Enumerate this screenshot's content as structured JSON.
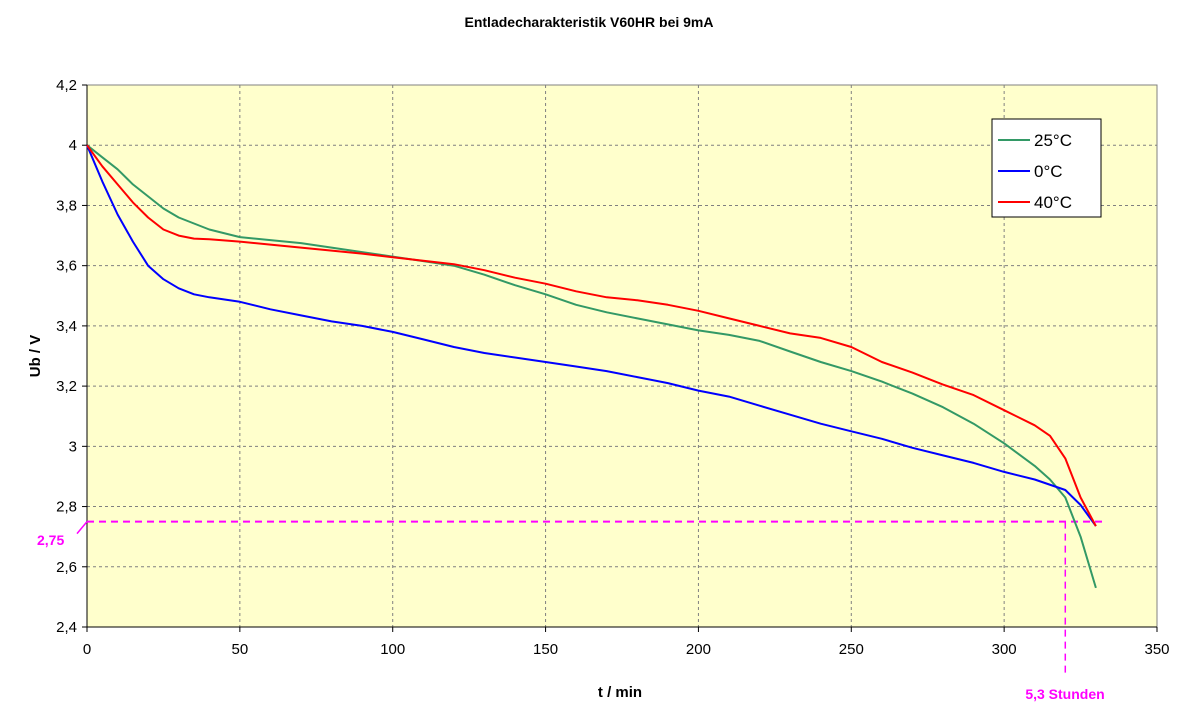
{
  "chart_data": {
    "type": "line",
    "title": "Entladecharakteristik V60HR bei 9mA",
    "xlabel": "t / min",
    "ylabel": "Ub / V",
    "xlim": [
      0,
      350
    ],
    "ylim": [
      2.4,
      4.2
    ],
    "x_ticks": [
      "0",
      "50",
      "100",
      "150",
      "200",
      "250",
      "300",
      "350"
    ],
    "y_ticks": [
      "2,4",
      "2,6",
      "2,8",
      "3",
      "3,2",
      "3,4",
      "3,6",
      "3,8",
      "4",
      "4,2"
    ],
    "grid": true,
    "legend_position": "top-right",
    "plot_background": "#ffffcc",
    "series": [
      {
        "name": "25°C",
        "color": "#339966",
        "points": [
          [
            0,
            4.0
          ],
          [
            5,
            3.96
          ],
          [
            10,
            3.92
          ],
          [
            15,
            3.87
          ],
          [
            20,
            3.83
          ],
          [
            25,
            3.79
          ],
          [
            30,
            3.76
          ],
          [
            40,
            3.72
          ],
          [
            50,
            3.695
          ],
          [
            60,
            3.685
          ],
          [
            70,
            3.675
          ],
          [
            80,
            3.66
          ],
          [
            90,
            3.645
          ],
          [
            100,
            3.63
          ],
          [
            110,
            3.615
          ],
          [
            120,
            3.6
          ],
          [
            130,
            3.57
          ],
          [
            140,
            3.535
          ],
          [
            150,
            3.505
          ],
          [
            160,
            3.47
          ],
          [
            170,
            3.445
          ],
          [
            180,
            3.425
          ],
          [
            190,
            3.405
          ],
          [
            200,
            3.385
          ],
          [
            210,
            3.37
          ],
          [
            220,
            3.35
          ],
          [
            230,
            3.315
          ],
          [
            240,
            3.28
          ],
          [
            250,
            3.25
          ],
          [
            260,
            3.215
          ],
          [
            270,
            3.175
          ],
          [
            280,
            3.13
          ],
          [
            290,
            3.075
          ],
          [
            300,
            3.01
          ],
          [
            310,
            2.935
          ],
          [
            315,
            2.89
          ],
          [
            320,
            2.83
          ],
          [
            325,
            2.7
          ],
          [
            330,
            2.53
          ]
        ]
      },
      {
        "name": "0°C",
        "color": "#0000ff",
        "points": [
          [
            0,
            4.0
          ],
          [
            5,
            3.88
          ],
          [
            10,
            3.77
          ],
          [
            15,
            3.68
          ],
          [
            20,
            3.6
          ],
          [
            25,
            3.555
          ],
          [
            30,
            3.525
          ],
          [
            35,
            3.505
          ],
          [
            40,
            3.495
          ],
          [
            50,
            3.48
          ],
          [
            60,
            3.455
          ],
          [
            70,
            3.435
          ],
          [
            80,
            3.415
          ],
          [
            90,
            3.4
          ],
          [
            100,
            3.38
          ],
          [
            110,
            3.355
          ],
          [
            120,
            3.33
          ],
          [
            130,
            3.31
          ],
          [
            140,
            3.295
          ],
          [
            150,
            3.28
          ],
          [
            160,
            3.265
          ],
          [
            170,
            3.25
          ],
          [
            180,
            3.23
          ],
          [
            190,
            3.21
          ],
          [
            200,
            3.185
          ],
          [
            210,
            3.165
          ],
          [
            220,
            3.135
          ],
          [
            230,
            3.105
          ],
          [
            240,
            3.075
          ],
          [
            250,
            3.05
          ],
          [
            260,
            3.025
          ],
          [
            270,
            2.995
          ],
          [
            280,
            2.97
          ],
          [
            290,
            2.945
          ],
          [
            300,
            2.915
          ],
          [
            310,
            2.89
          ],
          [
            320,
            2.855
          ],
          [
            325,
            2.805
          ],
          [
            330,
            2.735
          ]
        ]
      },
      {
        "name": "40°C",
        "color": "#ff0000",
        "points": [
          [
            0,
            4.0
          ],
          [
            5,
            3.93
          ],
          [
            10,
            3.87
          ],
          [
            15,
            3.81
          ],
          [
            20,
            3.76
          ],
          [
            25,
            3.72
          ],
          [
            30,
            3.7
          ],
          [
            35,
            3.69
          ],
          [
            40,
            3.688
          ],
          [
            50,
            3.68
          ],
          [
            60,
            3.67
          ],
          [
            70,
            3.66
          ],
          [
            80,
            3.65
          ],
          [
            90,
            3.64
          ],
          [
            100,
            3.628
          ],
          [
            110,
            3.616
          ],
          [
            120,
            3.605
          ],
          [
            130,
            3.585
          ],
          [
            140,
            3.56
          ],
          [
            150,
            3.54
          ],
          [
            160,
            3.515
          ],
          [
            170,
            3.495
          ],
          [
            180,
            3.485
          ],
          [
            190,
            3.47
          ],
          [
            200,
            3.45
          ],
          [
            210,
            3.425
          ],
          [
            220,
            3.4
          ],
          [
            230,
            3.375
          ],
          [
            240,
            3.36
          ],
          [
            250,
            3.33
          ],
          [
            260,
            3.28
          ],
          [
            270,
            3.245
          ],
          [
            280,
            3.205
          ],
          [
            290,
            3.17
          ],
          [
            300,
            3.12
          ],
          [
            310,
            3.07
          ],
          [
            315,
            3.035
          ],
          [
            320,
            2.96
          ],
          [
            325,
            2.83
          ],
          [
            330,
            2.735
          ]
        ]
      }
    ],
    "annotations": {
      "threshold_y": 2.75,
      "threshold_label": "2,75",
      "threshold_x": 320,
      "time_label": "5,3 Stunden",
      "color": "#ff00ff"
    }
  }
}
